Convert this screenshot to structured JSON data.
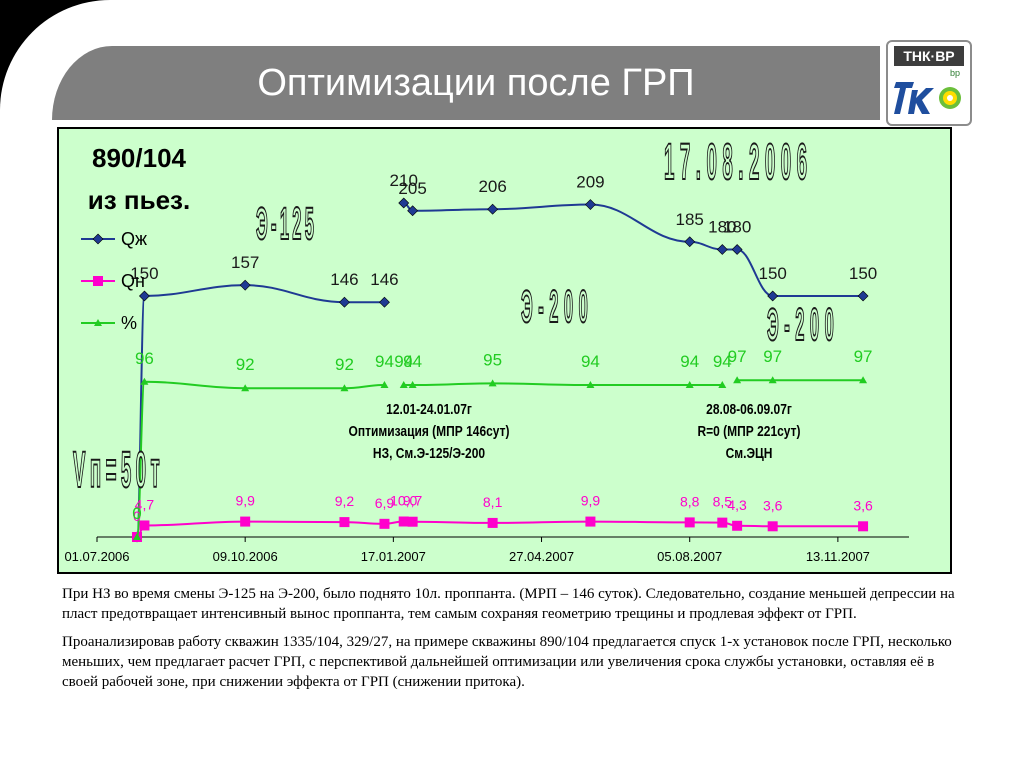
{
  "slide": {
    "title": "Оптимизации после ГРП",
    "logo": {
      "top_text": "ТНК·ВР",
      "icon": "tnk-bp-logo",
      "bp_text": "bp"
    }
  },
  "colors": {
    "qzh": "#1f3a93",
    "qn": "#ff00cc",
    "pct": "#22cc22",
    "plot_bg": "#ccffcc",
    "title_bar": "#7f7f7f"
  },
  "chart_data": {
    "type": "line",
    "title": "890/104 из пьез.",
    "title_lines": [
      "890/104",
      "из пьез."
    ],
    "xlabel": "",
    "ylabel": "",
    "x_tick_labels": [
      "01.07.2006",
      "09.10.2006",
      "17.01.2007",
      "27.04.2007",
      "05.08.2007",
      "13.11.2007"
    ],
    "x_ticks": [
      "2006-07-01",
      "2006-10-09",
      "2007-01-17",
      "2007-04-27",
      "2007-08-05",
      "2007-11-13"
    ],
    "xlim": [
      "2006-07-01",
      "2007-12-31"
    ],
    "grid": false,
    "legend_position": "top-left",
    "series": [
      {
        "name": "Qж",
        "marker": "diamond",
        "segments": [
          [
            {
              "x": "2006-07-28",
              "y": 0,
              "label": ""
            },
            {
              "x": "2006-08-02",
              "y": 150,
              "label": "150"
            },
            {
              "x": "2006-10-09",
              "y": 157,
              "label": "157"
            },
            {
              "x": "2006-12-15",
              "y": 146,
              "label": "146"
            },
            {
              "x": "2007-01-11",
              "y": 146,
              "label": "146"
            }
          ],
          [
            {
              "x": "2007-01-24",
              "y": 210,
              "label": "210"
            },
            {
              "x": "2007-01-30",
              "y": 205,
              "label": "205"
            },
            {
              "x": "2007-03-25",
              "y": 206,
              "label": "206"
            },
            {
              "x": "2007-05-30",
              "y": 209,
              "label": "209"
            },
            {
              "x": "2007-08-05",
              "y": 185,
              "label": "185"
            },
            {
              "x": "2007-08-27",
              "y": 180,
              "label": "180"
            },
            {
              "x": "2007-09-06",
              "y": 180,
              "label": "180"
            },
            {
              "x": "2007-09-30",
              "y": 150,
              "label": "150"
            },
            {
              "x": "2007-11-30",
              "y": 150,
              "label": "150"
            }
          ]
        ]
      },
      {
        "name": "Qн",
        "marker": "square",
        "segments": [
          [
            {
              "x": "2006-07-28",
              "y": 0,
              "label": "0"
            },
            {
              "x": "2006-08-02",
              "y": 4.7,
              "label": "4,7"
            },
            {
              "x": "2006-10-09",
              "y": 9.9,
              "label": "9,9"
            },
            {
              "x": "2006-12-15",
              "y": 9.2,
              "label": "9,2"
            },
            {
              "x": "2007-01-11",
              "y": 6.9,
              "label": "6,9"
            },
            {
              "x": "2007-01-24",
              "y": 10.0,
              "label": "10,0"
            },
            {
              "x": "2007-01-30",
              "y": 9.7,
              "label": "9,7"
            },
            {
              "x": "2007-03-25",
              "y": 8.1,
              "label": "8,1"
            },
            {
              "x": "2007-05-30",
              "y": 9.9,
              "label": "9,9"
            },
            {
              "x": "2007-08-05",
              "y": 8.8,
              "label": "8,8"
            },
            {
              "x": "2007-08-27",
              "y": 8.5,
              "label": "8,5"
            },
            {
              "x": "2007-09-06",
              "y": 4.3,
              "label": "4,3"
            },
            {
              "x": "2007-09-30",
              "y": 3.6,
              "label": "3,6"
            },
            {
              "x": "2007-11-30",
              "y": 3.6,
              "label": "3,6"
            }
          ]
        ]
      },
      {
        "name": "%",
        "marker": "triangle",
        "segments": [
          [
            {
              "x": "2006-07-28",
              "y": 0,
              "label": "0"
            },
            {
              "x": "2006-08-02",
              "y": 96,
              "label": "96"
            },
            {
              "x": "2006-10-09",
              "y": 92,
              "label": "92"
            },
            {
              "x": "2006-12-15",
              "y": 92,
              "label": "92"
            },
            {
              "x": "2007-01-11",
              "y": 94,
              "label": "94"
            }
          ],
          [
            {
              "x": "2007-01-24",
              "y": 94,
              "label": "94"
            },
            {
              "x": "2007-01-30",
              "y": 94,
              "label": "94"
            },
            {
              "x": "2007-03-25",
              "y": 95,
              "label": "95"
            },
            {
              "x": "2007-05-30",
              "y": 94,
              "label": "94"
            },
            {
              "x": "2007-08-05",
              "y": 94,
              "label": "94"
            },
            {
              "x": "2007-08-27",
              "y": 94,
              "label": "94"
            }
          ],
          [
            {
              "x": "2007-09-06",
              "y": 97,
              "label": "97"
            },
            {
              "x": "2007-09-30",
              "y": 97,
              "label": "97"
            },
            {
              "x": "2007-11-30",
              "y": 97,
              "label": "97"
            }
          ]
        ]
      }
    ],
    "annotations": {
      "date_big": "17.08.2006",
      "pump_1": "Э-125",
      "pump_2": "Э-200",
      "pump_3": "Э-200",
      "vp": "Vп=50т",
      "note_1": [
        "12.01-24.01.07г",
        "Оптимизация (МПР 146сут)",
        "НЗ, См.Э-125/Э-200"
      ],
      "note_2": [
        "28.08-06.09.07г",
        "R=0 (МПР 221сут)",
        "См.ЭЦН"
      ]
    }
  },
  "body": {
    "paragraph_1": "При НЗ во время смены Э-125 на Э-200, было поднято 10л. проппанта. (МРП – 146 суток). Следовательно, создание меньшей депрессии на пласт предотвращает интенсивный вынос проппанта, тем самым сохраняя геометрию трещины и продлевая эффект от ГРП.",
    "paragraph_2": "Проанализировав работу скважин 1335/104, 329/27, на примере скважины  890/104 предлагается спуск 1-х установок после ГРП, несколько меньших, чем предлагает расчет ГРП, с перспективой дальнейшей оптимизации или увеличения срока службы установки, оставляя её в своей рабочей зоне, при снижении эффекта от ГРП (снижении притока)."
  }
}
